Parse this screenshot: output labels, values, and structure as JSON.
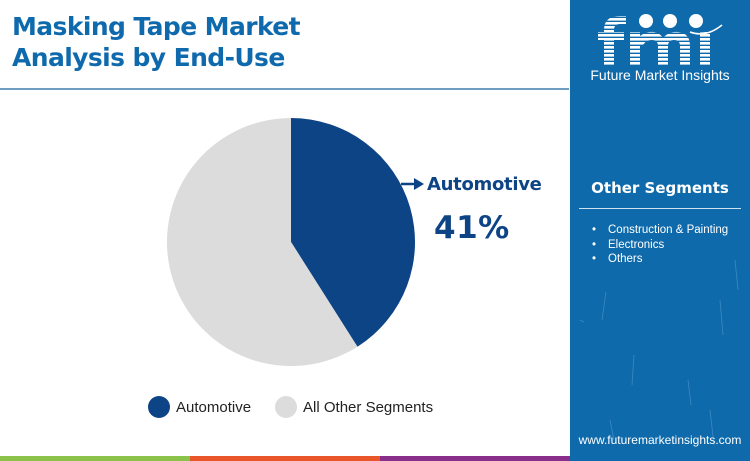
{
  "header": {
    "title_line1": "Masking Tape Market",
    "title_line2": "Analysis by End-Use"
  },
  "brand": {
    "logo_text": "fmi",
    "name": "Future Market Insights",
    "url": "www.futuremarketinsights.com",
    "panel_color": "#0f6aab"
  },
  "callout": {
    "label": "Automotive",
    "value": "41%"
  },
  "legend": [
    {
      "label": "Automotive",
      "color": "#0d4485"
    },
    {
      "label": "All Other Segments",
      "color": "#dcdcdc"
    }
  ],
  "side_panel": {
    "heading": "Other Segments",
    "items": [
      "Construction & Painting",
      "Electronics",
      "Others"
    ]
  },
  "bottom_bar_colors": [
    "#8bc34a",
    "#e8562a",
    "#8a2e8c"
  ],
  "chart_data": {
    "type": "pie",
    "title": "Masking Tape Market Analysis by End-Use",
    "categories": [
      "Automotive",
      "All Other Segments"
    ],
    "values": [
      41,
      59
    ],
    "colors": [
      "#0d4485",
      "#dcdcdc"
    ],
    "start_angle": "12 o'clock, clockwise",
    "annotations": [
      {
        "target": "Automotive",
        "text": "41%"
      }
    ],
    "legend_position": "bottom"
  }
}
